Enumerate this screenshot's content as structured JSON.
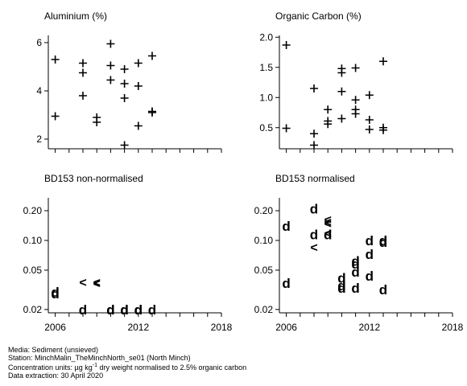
{
  "chart_data": [
    {
      "type": "scatter",
      "title": "Aluminium (%)",
      "xlim": [
        2005.5,
        2018
      ],
      "ylim": [
        1.6,
        6.3
      ],
      "x_ticks": [
        "2006",
        "2012",
        "2018"
      ],
      "y_ticks": [
        {
          "value": 2,
          "label": "2"
        },
        {
          "value": 4,
          "label": "4"
        },
        {
          "value": 6,
          "label": "6"
        }
      ],
      "show_x_tick_labels": false,
      "points": [
        {
          "x": 2006,
          "y": 5.3,
          "m": "+"
        },
        {
          "x": 2006,
          "y": 2.95,
          "m": "+"
        },
        {
          "x": 2008,
          "y": 5.15,
          "m": "+"
        },
        {
          "x": 2008,
          "y": 4.75,
          "m": "+"
        },
        {
          "x": 2008,
          "y": 3.8,
          "m": "+"
        },
        {
          "x": 2009,
          "y": 2.9,
          "m": "+"
        },
        {
          "x": 2009,
          "y": 2.7,
          "m": "+"
        },
        {
          "x": 2010,
          "y": 5.95,
          "m": "+"
        },
        {
          "x": 2010,
          "y": 5.05,
          "m": "+"
        },
        {
          "x": 2010,
          "y": 4.45,
          "m": "+"
        },
        {
          "x": 2011,
          "y": 4.9,
          "m": "+"
        },
        {
          "x": 2011,
          "y": 4.3,
          "m": "+"
        },
        {
          "x": 2011,
          "y": 3.7,
          "m": "+"
        },
        {
          "x": 2011,
          "y": 1.75,
          "m": "+"
        },
        {
          "x": 2012,
          "y": 5.15,
          "m": "+"
        },
        {
          "x": 2012,
          "y": 4.2,
          "m": "+"
        },
        {
          "x": 2012,
          "y": 2.55,
          "m": "+"
        },
        {
          "x": 2013,
          "y": 5.45,
          "m": "+"
        },
        {
          "x": 2013,
          "y": 3.15,
          "m": "+"
        },
        {
          "x": 2013,
          "y": 3.1,
          "m": "+"
        }
      ]
    },
    {
      "type": "scatter",
      "title": "Organic Carbon (%)",
      "xlim": [
        2005.5,
        2018
      ],
      "ylim": [
        0.15,
        2.03
      ],
      "x_ticks": [
        "2006",
        "2012",
        "2018"
      ],
      "y_ticks": [
        {
          "value": 0.5,
          "label": "0.5"
        },
        {
          "value": 1.0,
          "label": "1.0"
        },
        {
          "value": 1.5,
          "label": "1.5"
        },
        {
          "value": 2.0,
          "label": "2.0"
        }
      ],
      "show_x_tick_labels": false,
      "points": [
        {
          "x": 2006,
          "y": 1.87,
          "m": "+"
        },
        {
          "x": 2006,
          "y": 0.49,
          "m": "+"
        },
        {
          "x": 2008,
          "y": 1.15,
          "m": "+"
        },
        {
          "x": 2008,
          "y": 0.4,
          "m": "+"
        },
        {
          "x": 2008,
          "y": 0.21,
          "m": "+"
        },
        {
          "x": 2009,
          "y": 0.8,
          "m": "+"
        },
        {
          "x": 2009,
          "y": 0.61,
          "m": "+"
        },
        {
          "x": 2009,
          "y": 0.56,
          "m": "+"
        },
        {
          "x": 2010,
          "y": 1.48,
          "m": "+"
        },
        {
          "x": 2010,
          "y": 1.41,
          "m": "+"
        },
        {
          "x": 2010,
          "y": 1.1,
          "m": "+"
        },
        {
          "x": 2010,
          "y": 0.65,
          "m": "+"
        },
        {
          "x": 2011,
          "y": 1.49,
          "m": "+"
        },
        {
          "x": 2011,
          "y": 0.96,
          "m": "+"
        },
        {
          "x": 2011,
          "y": 0.8,
          "m": "+"
        },
        {
          "x": 2011,
          "y": 0.73,
          "m": "+"
        },
        {
          "x": 2012,
          "y": 1.04,
          "m": "+"
        },
        {
          "x": 2012,
          "y": 0.63,
          "m": "+"
        },
        {
          "x": 2012,
          "y": 0.47,
          "m": "+"
        },
        {
          "x": 2013,
          "y": 1.6,
          "m": "+"
        },
        {
          "x": 2013,
          "y": 0.5,
          "m": "+"
        },
        {
          "x": 2013,
          "y": 0.46,
          "m": "+"
        }
      ]
    },
    {
      "type": "scatter",
      "title": "BD153 non-normalised",
      "scale": "log",
      "xlim": [
        2005.5,
        2018
      ],
      "ylim": [
        0.0185,
        0.27
      ],
      "x_ticks": [
        "2006",
        "2012",
        "2018"
      ],
      "y_ticks": [
        {
          "value": 0.02,
          "label": "0.02"
        },
        {
          "value": 0.05,
          "label": "0.05"
        },
        {
          "value": 0.1,
          "label": "0.10"
        },
        {
          "value": 0.2,
          "label": "0.20"
        }
      ],
      "show_x_tick_labels": true,
      "points": [
        {
          "x": 2006,
          "y": 0.03,
          "m": "d"
        },
        {
          "x": 2006,
          "y": 0.029,
          "m": "d"
        },
        {
          "x": 2008,
          "y": 0.038,
          "m": "<"
        },
        {
          "x": 2008,
          "y": 0.02,
          "m": "d"
        },
        {
          "x": 2009,
          "y": 0.038,
          "m": "<"
        },
        {
          "x": 2009,
          "y": 0.037,
          "m": "<"
        },
        {
          "x": 2010,
          "y": 0.02,
          "m": "d"
        },
        {
          "x": 2010,
          "y": 0.02,
          "m": "d"
        },
        {
          "x": 2011,
          "y": 0.02,
          "m": "d"
        },
        {
          "x": 2011,
          "y": 0.02,
          "m": "d"
        },
        {
          "x": 2012,
          "y": 0.02,
          "m": "d"
        },
        {
          "x": 2012,
          "y": 0.02,
          "m": "d"
        },
        {
          "x": 2013,
          "y": 0.02,
          "m": "d"
        }
      ]
    },
    {
      "type": "scatter",
      "title": "BD153 normalised",
      "scale": "log",
      "xlim": [
        2005.5,
        2018
      ],
      "ylim": [
        0.0185,
        0.27
      ],
      "x_ticks": [
        "2006",
        "2012",
        "2018"
      ],
      "y_ticks": [
        {
          "value": 0.02,
          "label": "0.02"
        },
        {
          "value": 0.05,
          "label": "0.05"
        },
        {
          "value": 0.1,
          "label": "0.10"
        },
        {
          "value": 0.2,
          "label": "0.20"
        }
      ],
      "show_x_tick_labels": true,
      "points": [
        {
          "x": 2006,
          "y": 0.14,
          "m": "d"
        },
        {
          "x": 2006,
          "y": 0.037,
          "m": "d"
        },
        {
          "x": 2008,
          "y": 0.21,
          "m": "d"
        },
        {
          "x": 2008,
          "y": 0.115,
          "m": "d"
        },
        {
          "x": 2008,
          "y": 0.086,
          "m": "<"
        },
        {
          "x": 2009,
          "y": 0.165,
          "m": "<"
        },
        {
          "x": 2009,
          "y": 0.155,
          "m": "<"
        },
        {
          "x": 2009,
          "y": 0.15,
          "m": "<"
        },
        {
          "x": 2009,
          "y": 0.12,
          "m": "<"
        },
        {
          "x": 2009,
          "y": 0.115,
          "m": "d"
        },
        {
          "x": 2010,
          "y": 0.042,
          "m": "d"
        },
        {
          "x": 2010,
          "y": 0.035,
          "m": "d"
        },
        {
          "x": 2010,
          "y": 0.033,
          "m": "d"
        },
        {
          "x": 2011,
          "y": 0.062,
          "m": "d"
        },
        {
          "x": 2011,
          "y": 0.058,
          "m": "d"
        },
        {
          "x": 2011,
          "y": 0.048,
          "m": "d"
        },
        {
          "x": 2011,
          "y": 0.033,
          "m": "d"
        },
        {
          "x": 2012,
          "y": 0.1,
          "m": "d"
        },
        {
          "x": 2012,
          "y": 0.073,
          "m": "d"
        },
        {
          "x": 2012,
          "y": 0.044,
          "m": "d"
        },
        {
          "x": 2013,
          "y": 0.1,
          "m": "d"
        },
        {
          "x": 2013,
          "y": 0.096,
          "m": "d"
        },
        {
          "x": 2013,
          "y": 0.032,
          "m": "d"
        }
      ]
    }
  ],
  "footer": {
    "media": "Media: Sediment (unsieved)",
    "station": "Station: MinchMalin_TheMinchNorth_se01 (North Minch)",
    "units_prefix": "Concentration units:  µg kg",
    "units_superscript": "-1",
    "units_suffix": " dry weight normalised to 2.5% organic carbon",
    "extraction": "Data extraction: 30 April 2020"
  }
}
